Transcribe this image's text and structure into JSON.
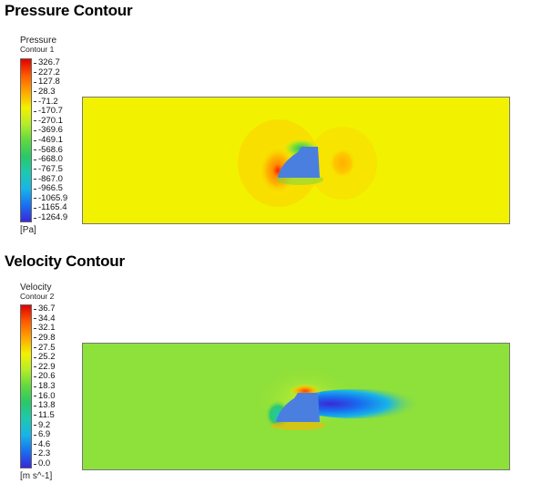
{
  "pressure": {
    "heading": "Pressure Contour",
    "legend_title": "Pressure",
    "legend_subtitle": "Contour 1",
    "units": "[Pa]",
    "ticks": [
      "326.7",
      "227.2",
      "127.8",
      "28.3",
      "-71.2",
      "-170.7",
      "-270.1",
      "-369.6",
      "-469.1",
      "-568.6",
      "-668.0",
      "-767.5",
      "-867.0",
      "-966.5",
      "-1065.9",
      "-1165.4",
      "-1264.9"
    ],
    "field_color": "#f2f200",
    "body_color": "#4a7fe0"
  },
  "velocity": {
    "heading": "Velocity Contour",
    "legend_title": "Velocity",
    "legend_subtitle": "Contour 2",
    "units": "[m s^-1]",
    "ticks": [
      "36.7",
      "34.4",
      "32.1",
      "29.8",
      "27.5",
      "25.2",
      "22.9",
      "20.6",
      "18.3",
      "16.0",
      "13.8",
      "11.5",
      "9.2",
      "6.9",
      "4.6",
      "2.3",
      "0.0"
    ],
    "field_color": "#8ee03a",
    "body_color": "#4a7fe0"
  },
  "colormap": [
    "#e00000",
    "#ff5a00",
    "#ffa500",
    "#f2f200",
    "#b4ec2a",
    "#60d840",
    "#28c868",
    "#1ec8b0",
    "#18b4e8",
    "#1870f0",
    "#3a28d8"
  ]
}
